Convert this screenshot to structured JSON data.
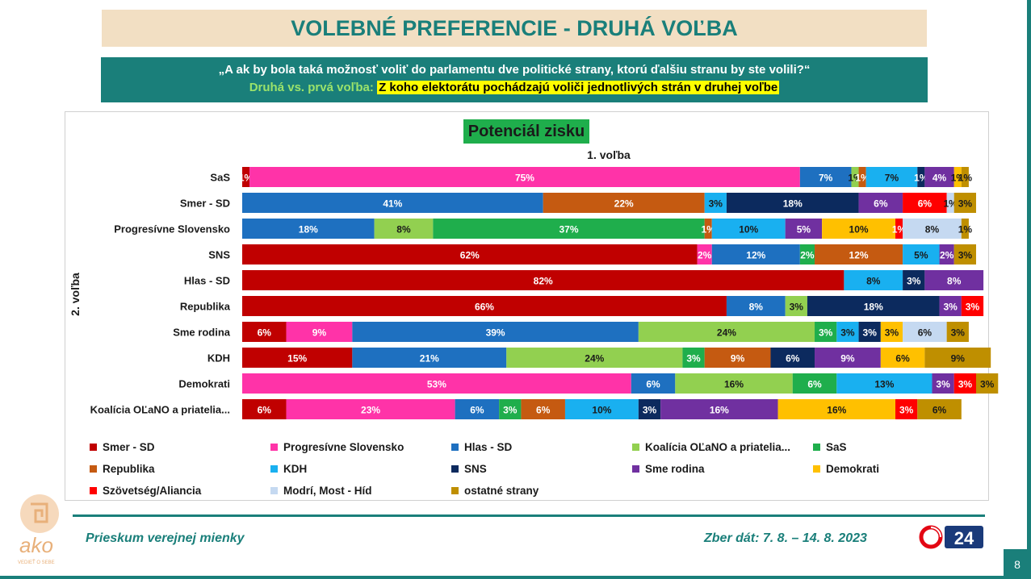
{
  "header": {
    "title": "VOLEBNÉ PREFERENCIE - DRUHÁ VOĽBA",
    "question": "„A ak by bola taká možnosť voliť do parlamentu dve politické strany, ktorú ďalšiu stranu by ste volili?“",
    "subtitle_prefix": "Druhá vs. prvá voľba:",
    "subtitle_highlight": "Z koho elektorátu pochádzajú voliči jednotlivých strán v druhej voľbe"
  },
  "footer": {
    "left_text": "Prieskum verejnej mienky",
    "right_text": "Zber dát: 7. 8. – 14. 8. 2023",
    "page_number": "8",
    "ako_logo_text": "ako",
    "ako_tagline": "VEDIEŤ O SEBE",
    "o24_logo_text": "24"
  },
  "colors": {
    "accent": "#1a7f7a",
    "title_bg": "#f2dfc3",
    "chart_title_bg": "#1fae4c",
    "highlight": "#ffff00"
  },
  "chart_data": {
    "type": "bar",
    "orientation": "horizontal",
    "stacked": true,
    "title": "Potenciál zisku",
    "xlabel": "1. voľba",
    "ylabel": "2. voľba",
    "xlim": [
      0,
      100
    ],
    "grid": false,
    "legend_position": "bottom",
    "categories": [
      "SaS",
      "Smer - SD",
      "Progresívne Slovensko",
      "SNS",
      "Hlas - SD",
      "Republika",
      "Sme rodina",
      "KDH",
      "Demokrati",
      "Koalícia OĽaNO a priatelia..."
    ],
    "series": [
      {
        "name": "Smer - SD",
        "color": "#c00000",
        "values": [
          1,
          null,
          null,
          62,
          82,
          66,
          6,
          15,
          null,
          6
        ]
      },
      {
        "name": "Progresívne Slovensko",
        "color": "#ff33a8",
        "values": [
          75,
          null,
          null,
          2,
          null,
          null,
          9,
          null,
          53,
          23
        ]
      },
      {
        "name": "Hlas - SD",
        "color": "#1e70c0",
        "values": [
          7,
          41,
          18,
          12,
          null,
          8,
          39,
          21,
          6,
          6
        ]
      },
      {
        "name": "Koalícia OĽaNO a priatelia...",
        "color": "#92d050",
        "values": [
          1,
          null,
          8,
          null,
          null,
          3,
          24,
          24,
          16,
          null
        ]
      },
      {
        "name": "SaS",
        "color": "#1fae4c",
        "values": [
          null,
          null,
          37,
          2,
          null,
          null,
          3,
          3,
          6,
          3
        ]
      },
      {
        "name": "Republika",
        "color": "#c55a11",
        "values": [
          1,
          22,
          1,
          12,
          null,
          null,
          null,
          9,
          null,
          6
        ]
      },
      {
        "name": "KDH",
        "color": "#19b0f0",
        "values": [
          7,
          3,
          10,
          5,
          8,
          null,
          3,
          null,
          13,
          10
        ]
      },
      {
        "name": "SNS",
        "color": "#0c2a5e",
        "values": [
          1,
          18,
          null,
          null,
          3,
          18,
          3,
          6,
          null,
          3
        ]
      },
      {
        "name": "Sme rodina",
        "color": "#7030a0",
        "values": [
          4,
          6,
          5,
          2,
          8,
          3,
          null,
          9,
          3,
          16
        ]
      },
      {
        "name": "Demokrati",
        "color": "#ffc000",
        "values": [
          1,
          null,
          10,
          null,
          null,
          null,
          3,
          6,
          null,
          16
        ]
      },
      {
        "name": "Szövetség/Aliancia",
        "color": "#ff0000",
        "values": [
          null,
          6,
          1,
          null,
          null,
          3,
          null,
          null,
          3,
          3
        ]
      },
      {
        "name": "Modrí, Most - Híd",
        "color": "#c5d9f1",
        "values": [
          null,
          1,
          8,
          null,
          null,
          null,
          6,
          null,
          null,
          null
        ]
      },
      {
        "name": "ostatné strany",
        "color": "#bf8f00",
        "values": [
          1,
          3,
          1,
          3,
          null,
          null,
          3,
          9,
          3,
          6
        ]
      }
    ]
  }
}
